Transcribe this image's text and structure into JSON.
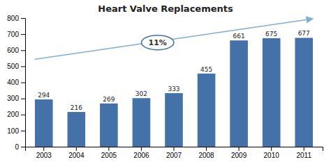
{
  "chart_data": {
    "type": "bar",
    "title": "Heart Valve Replacements",
    "categories": [
      "2003",
      "2004",
      "2005",
      "2006",
      "2007",
      "2008",
      "2009",
      "2010",
      "2011"
    ],
    "values": [
      294,
      216,
      269,
      302,
      333,
      455,
      661,
      675,
      677
    ],
    "color": "#4472a8",
    "ylim": [
      0,
      800
    ],
    "yticks": [
      0,
      100,
      200,
      300,
      400,
      500,
      600,
      700,
      800
    ],
    "grid": false,
    "data_labels": true,
    "annotations": [
      "11%"
    ]
  }
}
